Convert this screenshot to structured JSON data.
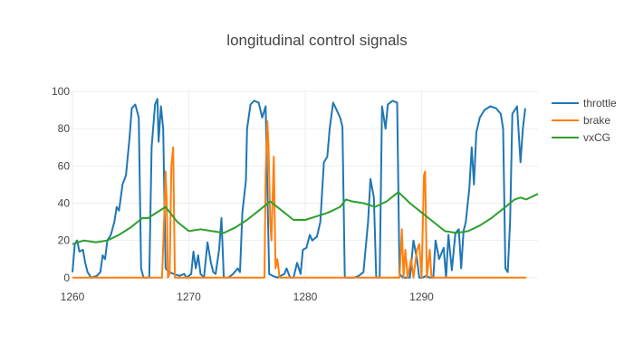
{
  "chart_data": {
    "type": "line",
    "title": "longitudinal control signals",
    "xlabel": "",
    "ylabel": "",
    "xlim": [
      1260,
      1300
    ],
    "ylim": [
      -3,
      101
    ],
    "x_ticks": [
      1260,
      1270,
      1280,
      1290
    ],
    "y_ticks": [
      0,
      20,
      40,
      60,
      80,
      100
    ],
    "grid": true,
    "legend_position": "right",
    "series": [
      {
        "name": "throttle",
        "color": "#1f77b4",
        "points": [
          [
            1260.0,
            3
          ],
          [
            1260.2,
            18
          ],
          [
            1260.4,
            20
          ],
          [
            1260.6,
            14
          ],
          [
            1260.9,
            15
          ],
          [
            1261.1,
            8
          ],
          [
            1261.3,
            3
          ],
          [
            1261.6,
            0
          ],
          [
            1262.1,
            1
          ],
          [
            1262.4,
            3
          ],
          [
            1262.6,
            12
          ],
          [
            1262.8,
            10
          ],
          [
            1263.0,
            20
          ],
          [
            1263.3,
            23
          ],
          [
            1263.6,
            30
          ],
          [
            1263.8,
            38
          ],
          [
            1264.0,
            36
          ],
          [
            1264.3,
            50
          ],
          [
            1264.6,
            55
          ],
          [
            1264.9,
            75
          ],
          [
            1265.1,
            91
          ],
          [
            1265.4,
            93
          ],
          [
            1265.7,
            86
          ],
          [
            1265.9,
            5
          ],
          [
            1266.1,
            0
          ],
          [
            1266.6,
            0
          ],
          [
            1266.8,
            70
          ],
          [
            1267.1,
            93
          ],
          [
            1267.3,
            96
          ],
          [
            1267.4,
            73
          ],
          [
            1267.6,
            92
          ],
          [
            1267.8,
            80
          ],
          [
            1268.0,
            5
          ],
          [
            1268.3,
            3
          ],
          [
            1268.7,
            2
          ],
          [
            1269.2,
            1
          ],
          [
            1269.6,
            2
          ],
          [
            1269.8,
            0
          ],
          [
            1270.2,
            2
          ],
          [
            1270.4,
            14
          ],
          [
            1270.6,
            5
          ],
          [
            1270.8,
            12
          ],
          [
            1271.0,
            2
          ],
          [
            1271.3,
            0
          ],
          [
            1271.6,
            19
          ],
          [
            1271.9,
            8
          ],
          [
            1272.1,
            3
          ],
          [
            1272.3,
            2
          ],
          [
            1272.6,
            15
          ],
          [
            1272.8,
            32
          ],
          [
            1273.0,
            0
          ],
          [
            1273.4,
            0
          ],
          [
            1273.8,
            2
          ],
          [
            1274.2,
            5
          ],
          [
            1274.4,
            3
          ],
          [
            1274.6,
            35
          ],
          [
            1274.9,
            52
          ],
          [
            1275.0,
            80
          ],
          [
            1275.3,
            93
          ],
          [
            1275.6,
            95
          ],
          [
            1276.0,
            94
          ],
          [
            1276.3,
            86
          ],
          [
            1276.6,
            92
          ],
          [
            1276.9,
            2
          ],
          [
            1277.2,
            1
          ],
          [
            1277.6,
            0
          ],
          [
            1277.9,
            1
          ],
          [
            1278.2,
            2
          ],
          [
            1278.4,
            5
          ],
          [
            1278.7,
            0
          ],
          [
            1279.0,
            0
          ],
          [
            1279.3,
            8
          ],
          [
            1279.6,
            2
          ],
          [
            1279.8,
            15
          ],
          [
            1280.1,
            16
          ],
          [
            1280.4,
            23
          ],
          [
            1280.6,
            20
          ],
          [
            1281.0,
            22
          ],
          [
            1281.3,
            30
          ],
          [
            1281.6,
            62
          ],
          [
            1281.9,
            65
          ],
          [
            1282.1,
            80
          ],
          [
            1282.4,
            94
          ],
          [
            1282.7,
            90
          ],
          [
            1283.0,
            86
          ],
          [
            1283.2,
            81
          ],
          [
            1283.4,
            0
          ],
          [
            1283.7,
            0
          ],
          [
            1284.2,
            0
          ],
          [
            1284.6,
            1
          ],
          [
            1285.0,
            3
          ],
          [
            1285.4,
            30
          ],
          [
            1285.6,
            53
          ],
          [
            1285.9,
            43
          ],
          [
            1286.1,
            0
          ],
          [
            1286.4,
            0
          ],
          [
            1286.6,
            92
          ],
          [
            1286.9,
            80
          ],
          [
            1287.1,
            93
          ],
          [
            1287.5,
            95
          ],
          [
            1287.9,
            94
          ],
          [
            1288.1,
            2
          ],
          [
            1288.4,
            0
          ],
          [
            1288.7,
            0
          ],
          [
            1289.0,
            0
          ],
          [
            1289.3,
            20
          ],
          [
            1289.6,
            10
          ],
          [
            1289.8,
            0
          ],
          [
            1290.1,
            0
          ],
          [
            1290.4,
            1
          ],
          [
            1290.7,
            0
          ],
          [
            1291.0,
            0
          ],
          [
            1291.2,
            20
          ],
          [
            1291.5,
            10
          ],
          [
            1291.9,
            16
          ],
          [
            1292.1,
            0
          ],
          [
            1292.3,
            23
          ],
          [
            1292.6,
            4
          ],
          [
            1292.9,
            24
          ],
          [
            1293.2,
            26
          ],
          [
            1293.4,
            5
          ],
          [
            1293.6,
            25
          ],
          [
            1293.8,
            30
          ],
          [
            1294.1,
            48
          ],
          [
            1294.3,
            70
          ],
          [
            1294.5,
            50
          ],
          [
            1294.7,
            78
          ],
          [
            1295.0,
            86
          ],
          [
            1295.4,
            90
          ],
          [
            1295.9,
            92
          ],
          [
            1296.4,
            91
          ],
          [
            1296.8,
            88
          ],
          [
            1297.0,
            80
          ],
          [
            1297.2,
            5
          ],
          [
            1297.4,
            3
          ],
          [
            1297.6,
            30
          ],
          [
            1297.8,
            88
          ],
          [
            1298.0,
            90
          ],
          [
            1298.2,
            92
          ],
          [
            1298.5,
            62
          ],
          [
            1298.7,
            80
          ],
          [
            1298.9,
            91
          ]
        ]
      },
      {
        "name": "brake",
        "color": "#ff7f0e",
        "points": [
          [
            1260.0,
            0
          ],
          [
            1267.7,
            0
          ],
          [
            1267.9,
            35
          ],
          [
            1268.0,
            57
          ],
          [
            1268.1,
            40
          ],
          [
            1268.2,
            0
          ],
          [
            1268.35,
            2
          ],
          [
            1268.5,
            60
          ],
          [
            1268.65,
            70
          ],
          [
            1268.8,
            0
          ],
          [
            1276.5,
            0
          ],
          [
            1276.6,
            55
          ],
          [
            1276.75,
            84
          ],
          [
            1276.85,
            70
          ],
          [
            1277.0,
            30
          ],
          [
            1277.1,
            20
          ],
          [
            1277.3,
            65
          ],
          [
            1277.45,
            5
          ],
          [
            1277.6,
            10
          ],
          [
            1277.8,
            0
          ],
          [
            1288.1,
            0
          ],
          [
            1288.3,
            26
          ],
          [
            1288.45,
            0
          ],
          [
            1288.6,
            15
          ],
          [
            1288.8,
            0
          ],
          [
            1289.1,
            10
          ],
          [
            1289.3,
            0
          ],
          [
            1289.6,
            15
          ],
          [
            1289.8,
            18
          ],
          [
            1290.0,
            0
          ],
          [
            1290.2,
            55
          ],
          [
            1290.3,
            57
          ],
          [
            1290.45,
            0
          ],
          [
            1290.7,
            15
          ],
          [
            1290.85,
            0
          ],
          [
            1299.0,
            0
          ]
        ]
      },
      {
        "name": "vxCG",
        "color": "#2ca02c",
        "points": [
          [
            1260.0,
            18
          ],
          [
            1260.5,
            19
          ],
          [
            1261.0,
            20
          ],
          [
            1262.0,
            19
          ],
          [
            1263.0,
            20
          ],
          [
            1264.0,
            23
          ],
          [
            1265.0,
            27
          ],
          [
            1266.0,
            32
          ],
          [
            1266.5,
            32
          ],
          [
            1267.0,
            34
          ],
          [
            1268.0,
            38
          ],
          [
            1269.0,
            30
          ],
          [
            1270.0,
            25
          ],
          [
            1271.0,
            26
          ],
          [
            1272.0,
            25
          ],
          [
            1273.0,
            24
          ],
          [
            1274.0,
            27
          ],
          [
            1275.0,
            31
          ],
          [
            1276.0,
            36
          ],
          [
            1277.0,
            41
          ],
          [
            1278.0,
            36
          ],
          [
            1279.0,
            31
          ],
          [
            1280.0,
            31
          ],
          [
            1281.0,
            33
          ],
          [
            1282.0,
            35
          ],
          [
            1283.0,
            38
          ],
          [
            1283.5,
            42
          ],
          [
            1284.0,
            41
          ],
          [
            1285.0,
            40
          ],
          [
            1286.0,
            38
          ],
          [
            1287.0,
            41
          ],
          [
            1288.0,
            46
          ],
          [
            1289.0,
            40
          ],
          [
            1290.0,
            35
          ],
          [
            1291.0,
            30
          ],
          [
            1292.0,
            25
          ],
          [
            1293.0,
            24
          ],
          [
            1294.0,
            25
          ],
          [
            1295.0,
            28
          ],
          [
            1296.0,
            32
          ],
          [
            1297.0,
            37
          ],
          [
            1298.0,
            42
          ],
          [
            1298.5,
            43
          ],
          [
            1299.0,
            42
          ],
          [
            1300.0,
            45
          ]
        ]
      }
    ]
  }
}
